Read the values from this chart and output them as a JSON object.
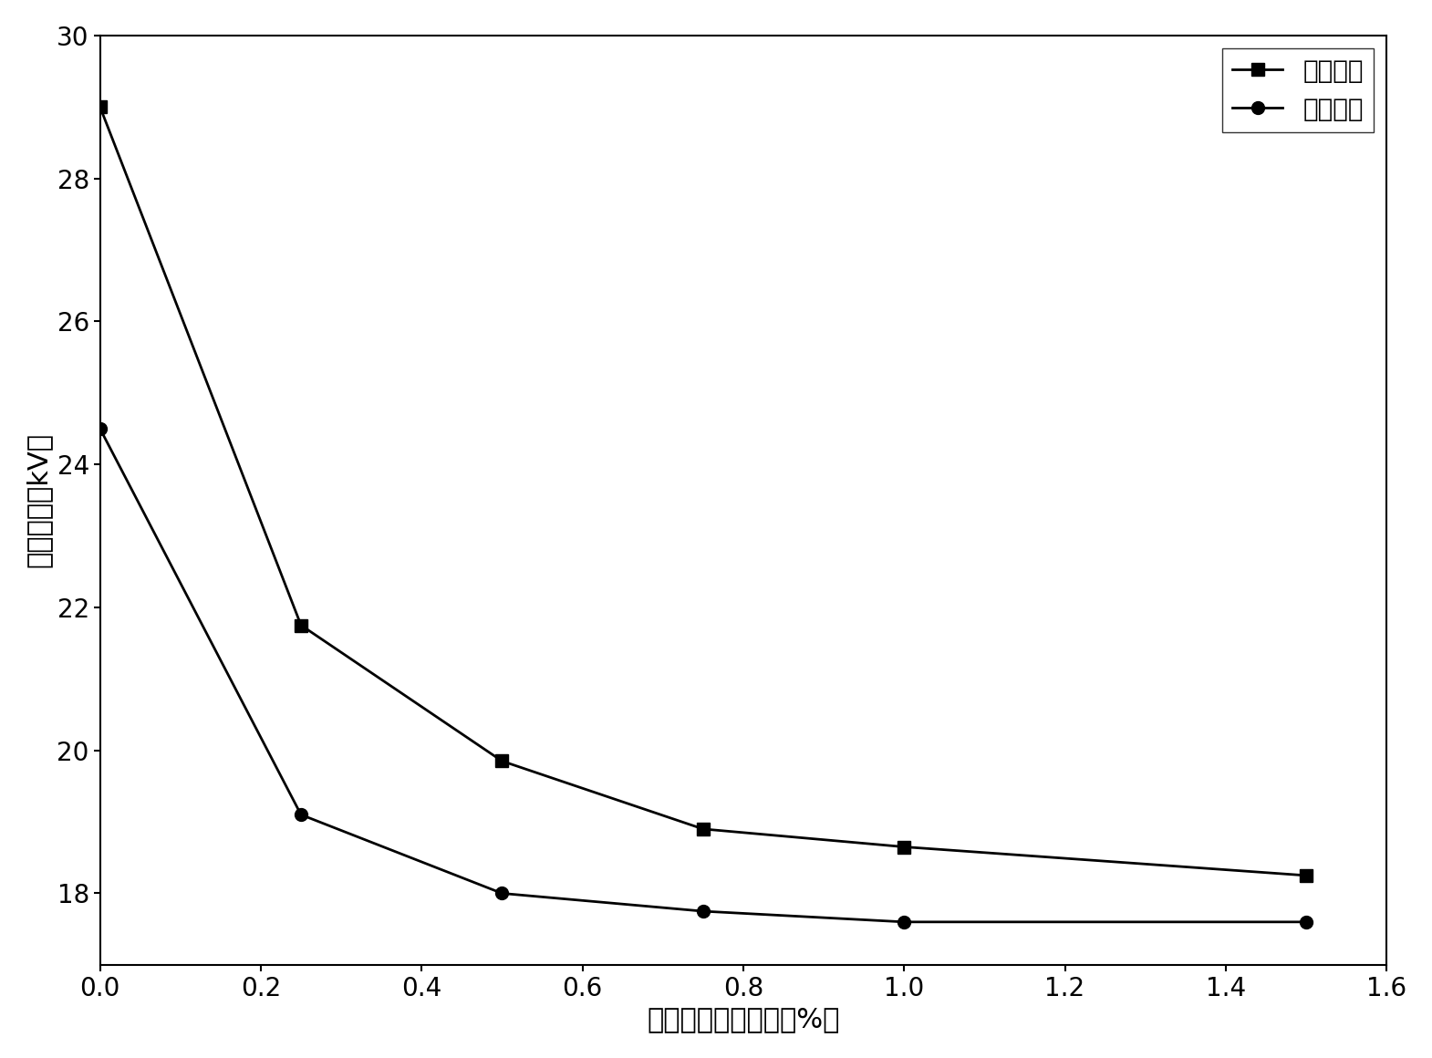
{
  "x_positive": [
    0.0,
    0.25,
    0.5,
    0.75,
    1.0,
    1.5
  ],
  "y_positive": [
    29.0,
    21.75,
    19.85,
    18.9,
    18.65,
    18.25
  ],
  "x_negative": [
    0.0,
    0.25,
    0.5,
    0.75,
    1.0,
    1.5
  ],
  "y_negative": [
    24.5,
    19.1,
    18.0,
    17.75,
    17.6,
    17.6
  ],
  "xlabel": "导电颗粒体积分数（%）",
  "ylabel": "击穿电压（kV）",
  "legend_positive": "正半周期",
  "legend_negative": "负半周期",
  "xlim": [
    0.0,
    1.6
  ],
  "ylim": [
    17.0,
    30.0
  ],
  "xticks": [
    0.0,
    0.2,
    0.4,
    0.6,
    0.8,
    1.0,
    1.2,
    1.4,
    1.6
  ],
  "yticks": [
    18,
    20,
    22,
    24,
    26,
    28,
    30
  ],
  "line_color": "#000000",
  "marker_square": "s",
  "marker_circle": "o",
  "marker_size": 10,
  "linewidth": 2.0,
  "label_fontsize": 22,
  "tick_fontsize": 20,
  "legend_fontsize": 20,
  "background_color": "#ffffff"
}
